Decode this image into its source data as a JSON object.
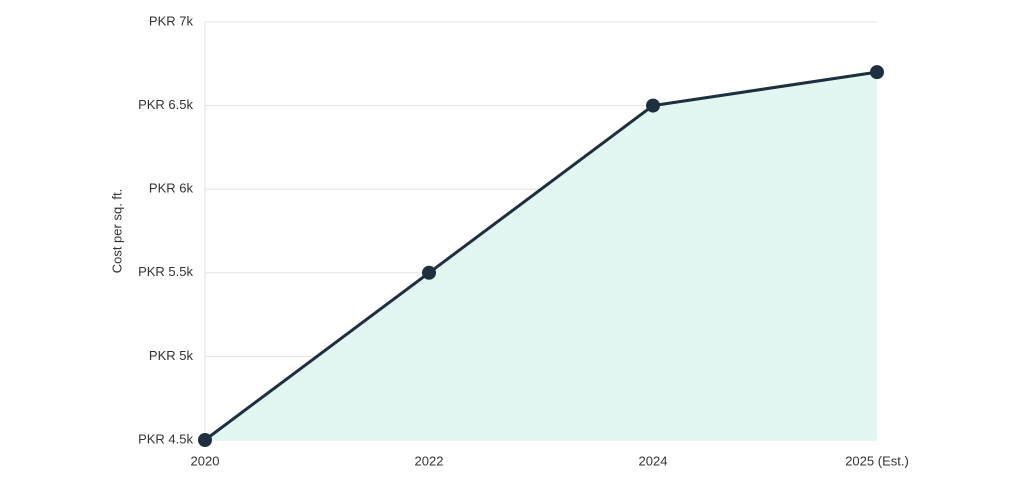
{
  "chart_data": {
    "type": "area",
    "y_label": "Cost per sq. ft.",
    "categories": [
      "2020",
      "2022",
      "2024",
      "2025 (Est.)"
    ],
    "values": [
      4500,
      5500,
      6500,
      6700
    ],
    "color": "#1e2f40",
    "fill_color": "#e3f7f2",
    "ylim": [
      4500,
      7000
    ],
    "yticks": [
      {
        "value": 4500,
        "label": "PKR 4.5k"
      },
      {
        "value": 5000,
        "label": "PKR 5k"
      },
      {
        "value": 5500,
        "label": "PKR 5.5k"
      },
      {
        "value": 6000,
        "label": "PKR 6k"
      },
      {
        "value": 6500,
        "label": "PKR 6.5k"
      },
      {
        "value": 7000,
        "label": "PKR 7k"
      }
    ],
    "grid": true
  }
}
